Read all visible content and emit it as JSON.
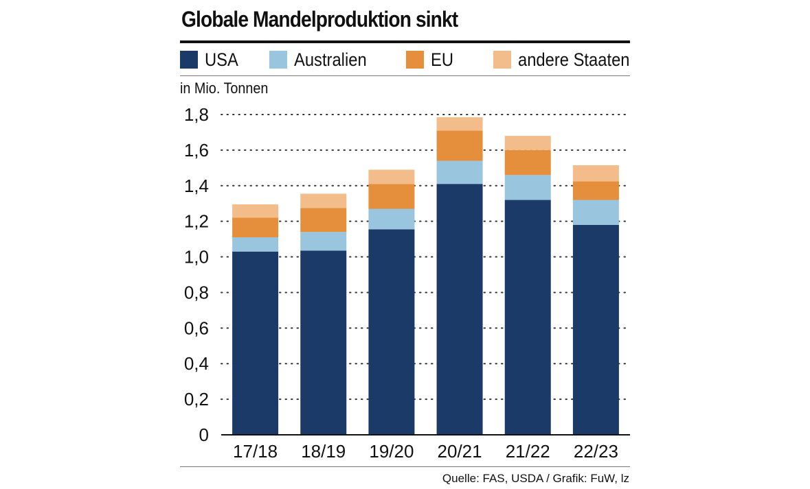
{
  "chart_data": {
    "type": "bar",
    "stacked": true,
    "title": "Globale Mandelproduktion sinkt",
    "ylabel": "in Mio. Tonnen",
    "xlabel": "",
    "ylim": [
      0,
      1.8
    ],
    "yticks": [
      "0",
      "0,2",
      "0,4",
      "0,6",
      "0,8",
      "1,0",
      "1,2",
      "1,4",
      "1,6",
      "1,8"
    ],
    "categories": [
      "17/18",
      "18/19",
      "19/20",
      "20/21",
      "21/22",
      "22/23"
    ],
    "series": [
      {
        "name": "USA",
        "color": "#1b3a68",
        "values": [
          1.03,
          1.035,
          1.155,
          1.41,
          1.32,
          1.18
        ]
      },
      {
        "name": "Australien",
        "color": "#9ac5df",
        "values": [
          0.08,
          0.105,
          0.115,
          0.13,
          0.14,
          0.14
        ]
      },
      {
        "name": "EU",
        "color": "#e58f3c",
        "values": [
          0.11,
          0.135,
          0.14,
          0.17,
          0.14,
          0.105
        ]
      },
      {
        "name": "andere Staaten",
        "color": "#f2bd8b",
        "values": [
          0.075,
          0.08,
          0.08,
          0.075,
          0.08,
          0.09
        ]
      }
    ],
    "grid": "dotted horizontal",
    "legend": "top"
  },
  "source": "Quelle: FAS, USDA / Grafik: FuW, lz"
}
